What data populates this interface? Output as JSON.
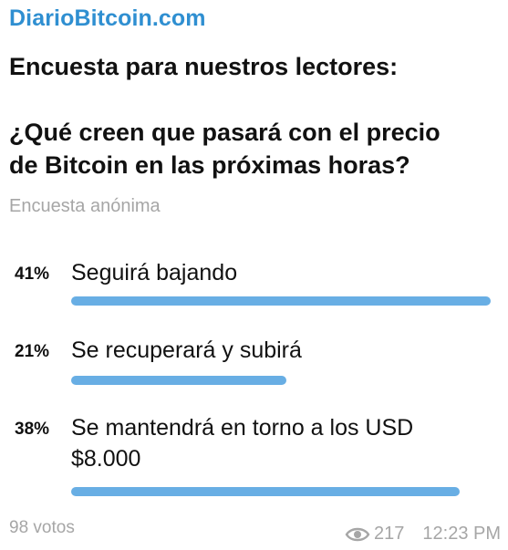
{
  "channel": "DiarioBitcoin.com",
  "poll": {
    "question_lines": [
      "Encuesta para nuestros lectores:",
      "",
      "¿Qué creen que pasará con el precio",
      "de Bitcoin en las próximas horas?"
    ],
    "type_label": "Encuesta anónima",
    "options": [
      {
        "percent_label": "41%",
        "percent": 41,
        "text_lines": [
          "Seguirá bajando"
        ]
      },
      {
        "percent_label": "21%",
        "percent": 21,
        "text_lines": [
          "Se recuperará y subirá"
        ]
      },
      {
        "percent_label": "38%",
        "percent": 38,
        "text_lines": [
          "Se mantendrá en torno a los USD",
          "$8.000"
        ]
      }
    ],
    "votes_label": "98 votos"
  },
  "meta": {
    "views": "217",
    "time": "12:23 PM",
    "view_icon": "eye-icon"
  },
  "colors": {
    "channel": "#2f8fd1",
    "bar": "#68aee4",
    "muted": "#a6a6a6"
  }
}
